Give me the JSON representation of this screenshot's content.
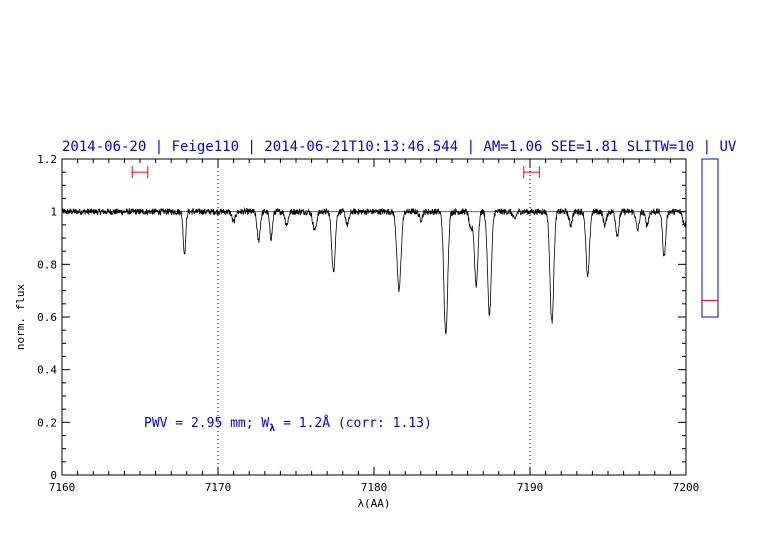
{
  "chart_data": {
    "type": "line",
    "title": "2014-06-20 | Feige110 | 2014-06-21T10:13:46.544 | AM=1.06  SEE=1.81  SLITW=10 | UV",
    "xlabel": "λ(AA)",
    "ylabel": "norm. flux",
    "xlim": [
      7160,
      7200
    ],
    "ylim": [
      0,
      1.2
    ],
    "x_ticks": [
      7160,
      7170,
      7180,
      7190,
      7200
    ],
    "x_tick_labels": [
      "7160",
      "7170",
      "7180",
      "7190",
      "7200"
    ],
    "y_ticks": [
      0,
      0.2,
      0.4,
      0.6,
      0.8,
      1,
      1.2
    ],
    "y_tick_labels": [
      "0",
      "0.2",
      "0.4",
      "0.6",
      "0.8",
      "1",
      "1.2"
    ],
    "grid": false,
    "reference_line": {
      "y": 1.0,
      "color": "#ff0000"
    },
    "vertical_markers": [
      7170,
      7190
    ],
    "continuum_windows": [
      {
        "x": [
          7164.5,
          7165.5
        ],
        "y": 1.15
      },
      {
        "x": [
          7189.6,
          7190.6
        ],
        "y": 1.15
      }
    ],
    "annotation": {
      "pwv_text": "PWV = 2.95 mm; W",
      "sub": "λ",
      "rest": " = 1.2Å (corr: 1.13)",
      "x": 7165.3,
      "y": 0.2
    },
    "absorption_lines": [
      {
        "x": 7167.85,
        "depth": 0.16,
        "width": 0.08
      },
      {
        "x": 7171.0,
        "depth": 0.04,
        "width": 0.1
      },
      {
        "x": 7172.6,
        "depth": 0.11,
        "width": 0.1
      },
      {
        "x": 7173.4,
        "depth": 0.1,
        "width": 0.09
      },
      {
        "x": 7174.4,
        "depth": 0.05,
        "width": 0.1
      },
      {
        "x": 7176.2,
        "depth": 0.07,
        "width": 0.12
      },
      {
        "x": 7177.4,
        "depth": 0.23,
        "width": 0.11
      },
      {
        "x": 7178.3,
        "depth": 0.05,
        "width": 0.1
      },
      {
        "x": 7181.6,
        "depth": 0.3,
        "width": 0.13
      },
      {
        "x": 7183.0,
        "depth": 0.03,
        "width": 0.1
      },
      {
        "x": 7184.6,
        "depth": 0.47,
        "width": 0.12
      },
      {
        "x": 7186.2,
        "depth": 0.07,
        "width": 0.1
      },
      {
        "x": 7186.55,
        "depth": 0.28,
        "width": 0.11
      },
      {
        "x": 7187.4,
        "depth": 0.39,
        "width": 0.12
      },
      {
        "x": 7189.0,
        "depth": 0.03,
        "width": 0.1
      },
      {
        "x": 7191.4,
        "depth": 0.42,
        "width": 0.12
      },
      {
        "x": 7192.6,
        "depth": 0.05,
        "width": 0.1
      },
      {
        "x": 7193.7,
        "depth": 0.25,
        "width": 0.11
      },
      {
        "x": 7194.8,
        "depth": 0.05,
        "width": 0.1
      },
      {
        "x": 7195.6,
        "depth": 0.09,
        "width": 0.1
      },
      {
        "x": 7196.9,
        "depth": 0.07,
        "width": 0.1
      },
      {
        "x": 7197.5,
        "depth": 0.05,
        "width": 0.1
      },
      {
        "x": 7198.6,
        "depth": 0.17,
        "width": 0.1
      },
      {
        "x": 7199.9,
        "depth": 0.05,
        "width": 0.1
      }
    ],
    "noise_amplitude": 0.012,
    "side_panel": {
      "value": 0.66,
      "color": "#0000ff",
      "marker_color": "#ff0000"
    }
  }
}
